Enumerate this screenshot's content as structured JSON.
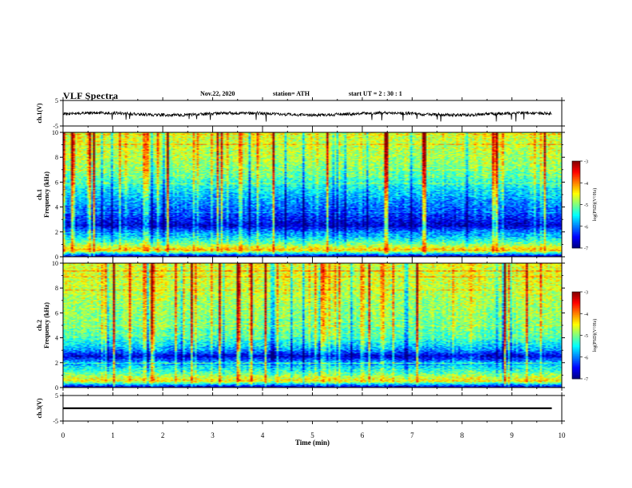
{
  "header": {
    "title": "VLF Spectra",
    "date": "Nov.22, 2020",
    "station": "station= ATH",
    "start": "start  UT =  2 : 30 : 1"
  },
  "chart_data": [
    {
      "type": "line",
      "panel": "ch1-waveform",
      "ylabel": "ch.1(V)",
      "ylim": [
        -5,
        5
      ],
      "yticks": [
        "5",
        "-5"
      ],
      "xlim": [
        0,
        10
      ],
      "description_values": {
        "baseline_V": -0.3,
        "noise_amplitude_V": 1.2,
        "spike_amplitude_V": -3.5
      }
    },
    {
      "type": "heatmap",
      "panel": "ch1-spectrogram",
      "ylabel": "ch.1",
      "ylabel2": "Frequency (kHz)",
      "ylim": [
        0,
        10
      ],
      "yticks": [
        "0",
        "2",
        "4",
        "6",
        "8",
        "10"
      ],
      "xlim": [
        0,
        10
      ],
      "colorbar": {
        "label": "log(PSD)(V²/Hz)",
        "range": [
          -7,
          -3
        ],
        "ticks": [
          "-3",
          "-4",
          "-5",
          "-6",
          "-7"
        ]
      },
      "band_profile": [
        {
          "f_khz": 0.0,
          "log_psd": -6.8
        },
        {
          "f_khz": 0.5,
          "log_psd": -4.2
        },
        {
          "f_khz": 1.0,
          "log_psd": -5.0
        },
        {
          "f_khz": 1.5,
          "log_psd": -5.6
        },
        {
          "f_khz": 2.0,
          "log_psd": -6.0
        },
        {
          "f_khz": 2.5,
          "log_psd": -6.7
        },
        {
          "f_khz": 3.0,
          "log_psd": -6.4
        },
        {
          "f_khz": 3.5,
          "log_psd": -6.2
        },
        {
          "f_khz": 4.5,
          "log_psd": -5.9
        },
        {
          "f_khz": 5.5,
          "log_psd": -5.5
        },
        {
          "f_khz": 6.5,
          "log_psd": -5.1
        },
        {
          "f_khz": 8.0,
          "log_psd": -4.8
        },
        {
          "f_khz": 10.0,
          "log_psd": -4.6
        }
      ]
    },
    {
      "type": "heatmap",
      "panel": "ch2-spectrogram",
      "ylabel": "ch.2",
      "ylabel2": "Frequency (kHz)",
      "ylim": [
        0,
        10
      ],
      "yticks": [
        "0",
        "2",
        "4",
        "6",
        "8",
        "10"
      ],
      "xlim": [
        0,
        10
      ],
      "colorbar": {
        "label": "log(PSD)(V²/Hz)",
        "range": [
          -7,
          -3
        ],
        "ticks": [
          "-3",
          "-4",
          "-5",
          "-6",
          "-7"
        ]
      },
      "band_profile": [
        {
          "f_khz": 0.0,
          "log_psd": -6.8
        },
        {
          "f_khz": 0.5,
          "log_psd": -4.4
        },
        {
          "f_khz": 1.0,
          "log_psd": -5.0
        },
        {
          "f_khz": 1.5,
          "log_psd": -5.5
        },
        {
          "f_khz": 2.0,
          "log_psd": -5.8
        },
        {
          "f_khz": 2.5,
          "log_psd": -6.7
        },
        {
          "f_khz": 3.0,
          "log_psd": -5.9
        },
        {
          "f_khz": 4.0,
          "log_psd": -5.2
        },
        {
          "f_khz": 5.0,
          "log_psd": -5.0
        },
        {
          "f_khz": 6.5,
          "log_psd": -4.9
        },
        {
          "f_khz": 8.0,
          "log_psd": -4.7
        },
        {
          "f_khz": 10.0,
          "log_psd": -4.6
        }
      ]
    },
    {
      "type": "line",
      "panel": "ch3-waveform",
      "ylabel": "ch.3(V)",
      "ylim": [
        -5,
        5
      ],
      "yticks": [
        "5",
        "-5"
      ],
      "xlim": [
        0,
        10
      ],
      "description_values": {
        "baseline_V": 0.0,
        "band_halfwidth_V": 0.35
      }
    }
  ],
  "xaxis": {
    "label": "Time (min)",
    "ticks": [
      "0",
      "1",
      "2",
      "3",
      "4",
      "5",
      "6",
      "7",
      "8",
      "9",
      "10"
    ],
    "range": [
      0,
      10
    ]
  }
}
